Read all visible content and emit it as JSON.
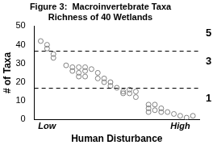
{
  "chart_data": {
    "type": "scatter",
    "title": [
      "Figure 3:  Macroinvertebrate Taxa",
      "Richness of 40 Wetlands"
    ],
    "x_label": "Human Disturbance",
    "y_label": "# of Taxa",
    "x": [
      1,
      2,
      2,
      3,
      3,
      5,
      6,
      6,
      7,
      7,
      7,
      8,
      8,
      8,
      9,
      10,
      10,
      11,
      11,
      12,
      12,
      13,
      14,
      14,
      15,
      15,
      16,
      16,
      18,
      18,
      18,
      19,
      19,
      20,
      20,
      21,
      22,
      23,
      24,
      25
    ],
    "values": [
      42,
      40,
      38,
      35,
      33,
      29,
      28,
      26,
      28,
      25,
      23,
      28,
      26,
      23,
      27,
      25,
      22,
      22,
      20,
      20,
      18,
      17,
      15,
      14,
      16,
      14,
      15,
      12,
      8,
      6,
      4,
      8,
      5,
      6,
      4,
      4,
      3,
      2,
      1,
      2
    ],
    "color": "#808080",
    "marker": "open_circle",
    "xlim": [
      0,
      26
    ],
    "xticks": [
      {
        "value": 2,
        "label": "Low"
      },
      {
        "value": 23,
        "label": "High"
      }
    ],
    "ylim": [
      0,
      50
    ],
    "yticks": [
      0,
      10,
      20,
      30,
      40,
      50
    ],
    "grid": false,
    "reference_lines": {
      "values": [
        37,
        17
      ],
      "line_style": "dashed",
      "color": "#000000"
    },
    "annotations": [
      {
        "text": "5",
        "y": 46
      },
      {
        "text": "3",
        "y": 31
      },
      {
        "text": "1",
        "y": 11
      }
    ]
  }
}
